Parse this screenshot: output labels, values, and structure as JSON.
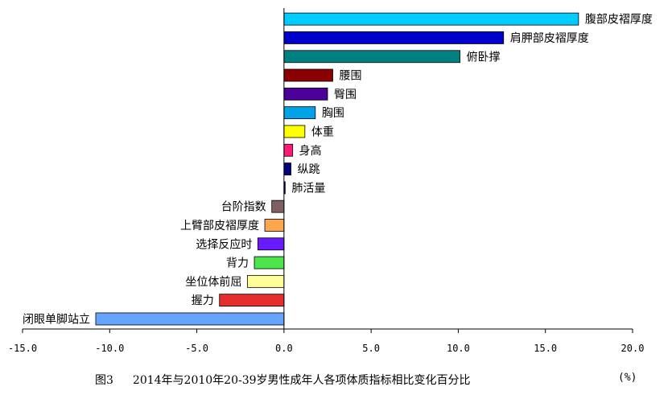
{
  "caption": {
    "figure_no": "图3",
    "title": "2014年与2010年20-39岁男性成年人各项体质指标相比变化百分比"
  },
  "chart_data": {
    "type": "bar",
    "orientation": "horizontal",
    "unit": "(%)",
    "xlim": [
      -15,
      20
    ],
    "x_ticks": [
      -15,
      -10,
      -5,
      0,
      5,
      10,
      15,
      20
    ],
    "x_tick_labels": [
      "-15.0",
      "-10.0",
      "-5.0",
      "0.0",
      "5.0",
      "10.0",
      "15.0",
      "20.0"
    ],
    "grid": false,
    "categories": [
      "腹部皮褶厚度",
      "肩胛部皮褶厚度",
      "俯卧撑",
      "腰围",
      "臀围",
      "胸围",
      "体重",
      "身高",
      "纵跳",
      "肺活量",
      "台阶指数",
      "上臂部皮褶厚度",
      "选择反应时",
      "背力",
      "坐位体前屈",
      "握力",
      "闭眼单脚站立"
    ],
    "values": [
      16.9,
      12.6,
      10.1,
      2.8,
      2.5,
      1.8,
      1.2,
      0.5,
      0.4,
      0.05,
      -0.7,
      -1.1,
      -1.5,
      -1.7,
      -2.1,
      -3.7,
      -10.8
    ],
    "colors": [
      "#00ccff",
      "#0000cc",
      "#008080",
      "#8b0000",
      "#4b0099",
      "#00a3e8",
      "#ffff00",
      "#ff1a75",
      "#000080",
      "#000080",
      "#7f5f5f",
      "#ffa64d",
      "#6a1aff",
      "#4ce64c",
      "#ffff99",
      "#e62e2e",
      "#66a3ff"
    ]
  }
}
